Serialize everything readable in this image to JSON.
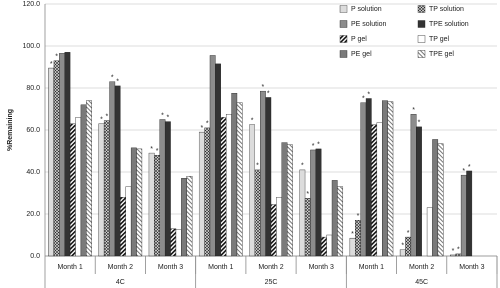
{
  "chart_data": {
    "type": "bar",
    "y_label": "%Remaining",
    "groups": [
      {
        "label": "4C",
        "categories": [
          "Month 1",
          "Month 2",
          "Month 3"
        ]
      },
      {
        "label": "25C",
        "categories": [
          "Month 1",
          "Month 2",
          "Month 3"
        ]
      },
      {
        "label": "45C",
        "categories": [
          "Month 1",
          "Month 2",
          "Month 3"
        ]
      }
    ],
    "series": [
      {
        "name": "P solution",
        "color": "#ffffff",
        "pattern": "dots",
        "values": [
          89.5,
          63,
          49,
          59,
          62.5,
          41,
          8.5,
          3,
          0.5
        ],
        "asterisks": [
          "*",
          "*",
          "*",
          "*",
          "*",
          "*",
          "*",
          "*",
          "*"
        ]
      },
      {
        "name": "TP solution",
        "color": "#cccccc",
        "pattern": "crosshatch",
        "values": [
          93,
          64.5,
          48,
          61,
          41,
          27.5,
          17,
          9,
          1
        ],
        "asterisks": [
          "*",
          "*",
          "*",
          "*",
          "*",
          "*",
          "*",
          "*",
          "*"
        ]
      },
      {
        "name": "PE solution",
        "color": "#8c8c8c",
        "pattern": null,
        "values": [
          96.5,
          83,
          65,
          95.5,
          78.5,
          50.5,
          73,
          67.5,
          38.5
        ],
        "asterisks": [
          null,
          "*",
          "*",
          null,
          "*",
          "*",
          "*",
          "*",
          "*"
        ]
      },
      {
        "name": "TPE solution",
        "color": "#333333",
        "pattern": null,
        "values": [
          97,
          81,
          64,
          91.5,
          75.5,
          51,
          75,
          61.5,
          40.5
        ],
        "asterisks": [
          null,
          "*",
          "*",
          null,
          "*",
          "*",
          "*",
          "*",
          "*"
        ]
      },
      {
        "name": "P gel",
        "color": "#111111",
        "pattern": "diagonal",
        "values": [
          63,
          28,
          13,
          66,
          24.5,
          9,
          62.5,
          0,
          0
        ]
      },
      {
        "name": "TP gel",
        "color": "#ffffff",
        "pattern": null,
        "values": [
          66,
          33,
          12.5,
          67.5,
          28,
          10,
          63.5,
          23,
          0
        ]
      },
      {
        "name": "PE gel",
        "color": "#7a7a7a",
        "pattern": null,
        "values": [
          72,
          51.5,
          37,
          77.5,
          54,
          36,
          74,
          55.5,
          0
        ]
      },
      {
        "name": "TPE gel",
        "color": "#999999",
        "pattern": "stripes",
        "values": [
          74,
          51,
          38,
          73,
          53,
          33,
          73.5,
          53.5,
          0
        ]
      }
    ],
    "ylim": [
      0,
      120
    ],
    "yticks": [
      {
        "value": 0,
        "label": "0.0"
      },
      {
        "value": 20,
        "label": "20.0"
      },
      {
        "value": 40,
        "label": "40.0"
      },
      {
        "value": 60,
        "label": "60.0"
      },
      {
        "value": 80,
        "label": "80.0"
      },
      {
        "value": 100,
        "label": "100.0"
      },
      {
        "value": 120,
        "label": "120.0"
      }
    ],
    "grid": true
  }
}
